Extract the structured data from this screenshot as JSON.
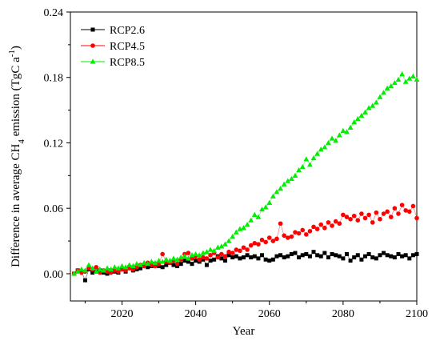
{
  "chart_data": {
    "type": "line",
    "title": "",
    "xlabel": "Year",
    "ylabel": {
      "prefix": "Difference in average CH",
      "sub": "4",
      "middle": " emission (TgC a",
      "sup": "-1",
      "suffix": ")"
    },
    "xlim": [
      2006,
      2100
    ],
    "ylim": [
      -0.025,
      0.24
    ],
    "xticks": [
      2020,
      2040,
      2060,
      2080,
      2100
    ],
    "yticks": [
      0.0,
      0.06,
      0.12,
      0.18,
      0.24
    ],
    "ytick_labels": [
      "0.00",
      "0.06",
      "0.12",
      "0.18",
      "0.24"
    ],
    "legend_position": "top-left",
    "grid": false,
    "x_start": 2007,
    "x_end": 2100,
    "series": [
      {
        "name": "RCP2.6",
        "color": "#000000",
        "marker": "square",
        "values": [
          0.0,
          0.003,
          0.002,
          -0.006,
          0.004,
          0.001,
          0.002,
          0.003,
          0.001,
          0.0,
          0.003,
          0.002,
          0.001,
          0.004,
          0.002,
          0.006,
          0.003,
          0.004,
          0.005,
          0.008,
          0.006,
          0.007,
          0.009,
          0.007,
          0.006,
          0.008,
          0.01,
          0.008,
          0.007,
          0.009,
          0.012,
          0.011,
          0.009,
          0.012,
          0.011,
          0.013,
          0.008,
          0.012,
          0.013,
          0.016,
          0.014,
          0.012,
          0.017,
          0.015,
          0.016,
          0.014,
          0.015,
          0.017,
          0.015,
          0.016,
          0.014,
          0.017,
          0.013,
          0.012,
          0.013,
          0.016,
          0.017,
          0.015,
          0.016,
          0.018,
          0.019,
          0.015,
          0.017,
          0.018,
          0.016,
          0.02,
          0.017,
          0.016,
          0.019,
          0.015,
          0.018,
          0.017,
          0.016,
          0.014,
          0.018,
          0.012,
          0.015,
          0.017,
          0.013,
          0.016,
          0.018,
          0.015,
          0.014,
          0.017,
          0.019,
          0.017,
          0.016,
          0.015,
          0.018,
          0.016,
          0.017,
          0.014,
          0.017,
          0.018
        ]
      },
      {
        "name": "RCP4.5",
        "color": "#ff0000",
        "marker": "circle",
        "values": [
          0.0,
          0.003,
          0.001,
          0.002,
          0.005,
          0.004,
          0.006,
          0.001,
          0.003,
          0.002,
          0.001,
          0.003,
          0.002,
          0.004,
          0.003,
          0.005,
          0.004,
          0.006,
          0.008,
          0.007,
          0.01,
          0.008,
          0.007,
          0.009,
          0.018,
          0.011,
          0.01,
          0.012,
          0.009,
          0.013,
          0.018,
          0.019,
          0.014,
          0.016,
          0.013,
          0.015,
          0.014,
          0.017,
          0.019,
          0.015,
          0.018,
          0.016,
          0.02,
          0.019,
          0.022,
          0.021,
          0.024,
          0.022,
          0.026,
          0.028,
          0.027,
          0.031,
          0.029,
          0.033,
          0.03,
          0.032,
          0.046,
          0.035,
          0.033,
          0.034,
          0.038,
          0.037,
          0.04,
          0.036,
          0.039,
          0.043,
          0.041,
          0.045,
          0.042,
          0.047,
          0.044,
          0.048,
          0.046,
          0.054,
          0.052,
          0.05,
          0.053,
          0.049,
          0.055,
          0.051,
          0.054,
          0.047,
          0.056,
          0.05,
          0.055,
          0.057,
          0.052,
          0.06,
          0.055,
          0.063,
          0.058,
          0.057,
          0.062,
          0.051
        ]
      },
      {
        "name": "RCP8.5",
        "color": "#00ee00",
        "marker": "triangle",
        "values": [
          0.0,
          0.002,
          0.004,
          0.003,
          0.008,
          0.005,
          0.002,
          0.004,
          0.003,
          0.005,
          0.004,
          0.006,
          0.005,
          0.007,
          0.006,
          0.008,
          0.007,
          0.009,
          0.008,
          0.01,
          0.009,
          0.011,
          0.01,
          0.012,
          0.011,
          0.013,
          0.012,
          0.014,
          0.013,
          0.015,
          0.016,
          0.014,
          0.017,
          0.018,
          0.017,
          0.019,
          0.02,
          0.022,
          0.021,
          0.024,
          0.025,
          0.027,
          0.03,
          0.034,
          0.038,
          0.041,
          0.042,
          0.045,
          0.049,
          0.054,
          0.052,
          0.059,
          0.061,
          0.065,
          0.071,
          0.075,
          0.078,
          0.082,
          0.085,
          0.087,
          0.09,
          0.095,
          0.098,
          0.105,
          0.1,
          0.106,
          0.11,
          0.114,
          0.116,
          0.12,
          0.124,
          0.122,
          0.127,
          0.131,
          0.13,
          0.134,
          0.139,
          0.142,
          0.145,
          0.148,
          0.152,
          0.154,
          0.157,
          0.162,
          0.166,
          0.17,
          0.172,
          0.175,
          0.178,
          0.183,
          0.176,
          0.179,
          0.181,
          0.178
        ]
      }
    ]
  }
}
